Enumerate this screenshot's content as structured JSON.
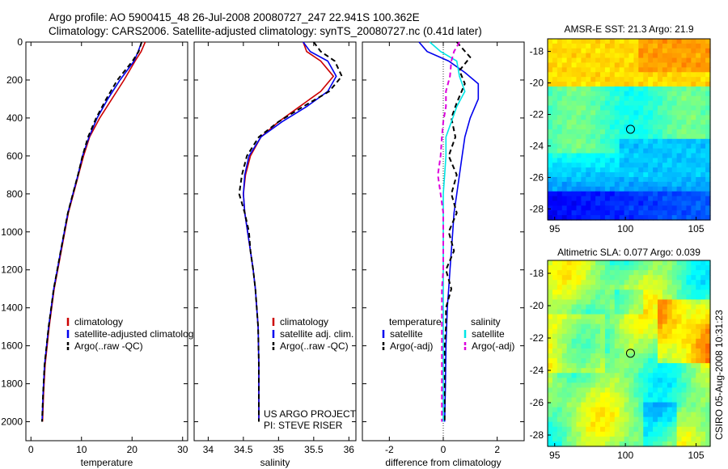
{
  "header": {
    "line1": "Argo profile: AO 5900415_48 26-Jul-2008 20080727_247 22.941S 100.362E",
    "line2": "Climatology: CARS2006. Satellite-adjusted climatology: synTS_20080727.nc (0.41d later)"
  },
  "side_label": "CSIRO 05-Aug-2008 10:31:23",
  "colors": {
    "climatology": "#cc0000",
    "satellite": "#0000ee",
    "argo": "#000000",
    "sal_satellite": "#00e5e5",
    "sal_argo": "#dd00dd"
  },
  "chart_data": [
    {
      "type": "line",
      "id": "temperature",
      "xlabel": "temperature",
      "ylabel": "",
      "xlim": [
        -1,
        31
      ],
      "ylim": [
        2100,
        0
      ],
      "y_reversed": true,
      "xticks": [
        0,
        10,
        20,
        30
      ],
      "yticks": [
        0,
        200,
        400,
        600,
        800,
        1000,
        1200,
        1400,
        1600,
        1800,
        2000
      ],
      "legend": {
        "placement": "lower-right",
        "entries": [
          "climatology",
          "satellite-adjusted climatology",
          "Argo(..raw -QC)"
        ]
      },
      "series": [
        {
          "name": "climatology",
          "color": "#cc0000",
          "style": "solid",
          "x": [
            22.6,
            21.8,
            20.6,
            18.4,
            16.0,
            13.6,
            11.6,
            10.4,
            9.4,
            8.4,
            7.4,
            6.7,
            6.0,
            5.3,
            4.6,
            4.1,
            3.6,
            3.2,
            2.8,
            2.5,
            2.3
          ],
          "y": [
            0,
            50,
            100,
            200,
            300,
            400,
            500,
            600,
            700,
            800,
            900,
            1000,
            1100,
            1200,
            1300,
            1400,
            1500,
            1600,
            1700,
            1850,
            2000
          ]
        },
        {
          "name": "satellite-adjusted climatology",
          "color": "#0000ee",
          "style": "solid",
          "x": [
            21.9,
            21.2,
            20.4,
            17.6,
            15.2,
            13.1,
            11.5,
            10.2,
            9.3,
            8.3,
            7.3,
            6.6,
            5.9,
            5.2,
            4.5,
            4.0,
            3.5,
            3.1,
            2.7,
            2.4,
            2.2
          ],
          "y": [
            0,
            50,
            100,
            200,
            300,
            400,
            500,
            600,
            700,
            800,
            900,
            1000,
            1100,
            1200,
            1300,
            1400,
            1500,
            1600,
            1700,
            1850,
            2000
          ]
        },
        {
          "name": "Argo(..raw -QC)",
          "color": "#000000",
          "style": "dashed",
          "x": [
            21.9,
            21.3,
            20.1,
            17.1,
            14.9,
            12.9,
            11.3,
            10.2,
            9.3,
            8.3,
            7.3,
            6.6,
            5.9,
            5.2,
            4.5,
            4.0,
            3.5,
            3.1,
            2.7,
            2.4,
            2.2
          ],
          "y": [
            0,
            50,
            100,
            200,
            300,
            400,
            500,
            600,
            700,
            800,
            900,
            1000,
            1100,
            1200,
            1300,
            1400,
            1500,
            1600,
            1700,
            1850,
            2000
          ]
        }
      ]
    },
    {
      "type": "line",
      "id": "salinity",
      "xlabel": "salinity",
      "ylabel": "",
      "xlim": [
        33.8,
        36.1
      ],
      "ylim": [
        2100,
        0
      ],
      "y_reversed": true,
      "xticks": [
        34,
        34.5,
        35,
        35.5,
        36
      ],
      "legend": {
        "placement": "lower-right",
        "entries": [
          "climatology",
          "satellite adj. clim.",
          "Argo(..raw -QC)"
        ]
      },
      "annotation": [
        "US ARGO PROJECT",
        "PI: STEVE RISER"
      ],
      "series": [
        {
          "name": "climatology",
          "color": "#cc0000",
          "style": "solid",
          "x": [
            35.35,
            35.4,
            35.6,
            35.78,
            35.6,
            35.3,
            35.0,
            34.75,
            34.6,
            34.53,
            34.5,
            34.52,
            34.56,
            34.6,
            34.64,
            34.67,
            34.69,
            34.71,
            34.72,
            34.72
          ],
          "y": [
            0,
            50,
            100,
            180,
            260,
            340,
            420,
            500,
            600,
            700,
            800,
            900,
            1000,
            1100,
            1200,
            1300,
            1400,
            1500,
            1700,
            2000
          ]
        },
        {
          "name": "satellite adj. clim.",
          "color": "#0000ee",
          "style": "solid",
          "x": [
            35.35,
            35.45,
            35.7,
            35.82,
            35.7,
            35.4,
            35.05,
            34.75,
            34.58,
            34.52,
            34.5,
            34.52,
            34.56,
            34.6,
            34.64,
            34.67,
            34.69,
            34.71,
            34.72,
            34.72
          ],
          "y": [
            0,
            50,
            100,
            180,
            260,
            340,
            420,
            500,
            600,
            700,
            800,
            900,
            1000,
            1100,
            1200,
            1300,
            1400,
            1500,
            1700,
            2000
          ]
        },
        {
          "name": "Argo(..raw -QC)",
          "color": "#000000",
          "style": "dashed",
          "x": [
            35.5,
            35.6,
            35.8,
            35.9,
            35.72,
            35.35,
            35.0,
            34.72,
            34.55,
            34.48,
            34.44,
            34.52,
            34.58,
            34.6,
            34.64,
            34.67,
            34.69,
            34.71,
            34.72,
            34.72
          ],
          "y": [
            0,
            50,
            100,
            180,
            260,
            340,
            420,
            500,
            600,
            700,
            800,
            900,
            1000,
            1100,
            1200,
            1300,
            1400,
            1500,
            1700,
            2000
          ]
        }
      ]
    },
    {
      "type": "line",
      "id": "difference",
      "xlabel": "difference from climatology",
      "ylabel": "",
      "xlim": [
        -3,
        3
      ],
      "ylim": [
        2100,
        0
      ],
      "y_reversed": true,
      "xticks": [
        -2,
        0,
        2
      ],
      "legend": {
        "placement": "lower-right",
        "groups": [
          {
            "title": "temperature",
            "entries": [
              "satellite",
              "Argo(-adj)"
            ]
          },
          {
            "title": "salinity",
            "entries": [
              "satellite",
              "Argo(-adj)"
            ]
          }
        ]
      },
      "series": [
        {
          "name": "temperature satellite",
          "color": "#0000ee",
          "style": "solid",
          "x": [
            -0.9,
            -0.6,
            0.2,
            0.8,
            1.3,
            1.3,
            1.0,
            0.8,
            0.7,
            0.6,
            0.5,
            0.4,
            0.35,
            0.3,
            0.25,
            0.2,
            0.15,
            0.1,
            0.08,
            0.05
          ],
          "y": [
            0,
            50,
            100,
            160,
            220,
            300,
            400,
            500,
            600,
            700,
            800,
            900,
            1000,
            1100,
            1200,
            1300,
            1400,
            1600,
            1800,
            2000
          ]
        },
        {
          "name": "temperature Argo(-adj)",
          "color": "#000000",
          "style": "dashed",
          "x": [
            0.5,
            1.0,
            0.6,
            0.8,
            0.5,
            0.3,
            0.45,
            0.2,
            0.5,
            0.3,
            0.5,
            0.2,
            0.4,
            0.1,
            0.3,
            0.1,
            0.1,
            0.05,
            0.05,
            0.05
          ],
          "y": [
            0,
            80,
            150,
            220,
            320,
            400,
            500,
            600,
            700,
            800,
            900,
            1000,
            1100,
            1200,
            1300,
            1400,
            1500,
            1600,
            1800,
            2000
          ]
        },
        {
          "name": "salinity satellite",
          "color": "#00e5e5",
          "style": "solid",
          "x": [
            -0.5,
            -0.1,
            0.5,
            0.6,
            0.8,
            0.5,
            0.3,
            0.1,
            0.1,
            0.05,
            0.0,
            0.0,
            0.0,
            0.0,
            0.0,
            0.0,
            0.0,
            0.0,
            0.0,
            0.0
          ],
          "y": [
            0,
            50,
            100,
            180,
            260,
            340,
            420,
            500,
            600,
            700,
            800,
            900,
            1000,
            1100,
            1200,
            1300,
            1400,
            1500,
            1700,
            2000
          ]
        },
        {
          "name": "salinity Argo(-adj)",
          "color": "#dd00dd",
          "style": "dashed",
          "x": [
            0.6,
            0.4,
            0.3,
            0.25,
            0.1,
            0.1,
            0.0,
            -0.05,
            -0.1,
            -0.2,
            -0.1,
            0.0,
            0.0,
            0.0,
            0.0,
            -0.05,
            -0.05,
            -0.05,
            -0.05,
            -0.05
          ],
          "y": [
            0,
            50,
            100,
            180,
            260,
            340,
            420,
            500,
            600,
            700,
            800,
            900,
            1000,
            1100,
            1200,
            1300,
            1400,
            1500,
            1700,
            2000
          ]
        }
      ]
    },
    {
      "type": "heatmap",
      "id": "sst_map",
      "title": "AMSR-E SST: 21.3 Argo: 21.9",
      "xlim": [
        94.5,
        106
      ],
      "ylim": [
        -28.7,
        -17.2
      ],
      "xticks": [
        95,
        100,
        105
      ],
      "yticks": [
        -18,
        -20,
        -22,
        -24,
        -26,
        -28
      ],
      "marker": {
        "lon": 100.362,
        "lat": -22.941
      }
    },
    {
      "type": "heatmap",
      "id": "sla_map",
      "title": "Altimetric SLA: 0.077 Argo: 0.039",
      "xlim": [
        94.5,
        106
      ],
      "ylim": [
        -28.7,
        -17.2
      ],
      "xticks": [
        95,
        100,
        105
      ],
      "yticks": [
        -18,
        -20,
        -22,
        -24,
        -26,
        -28
      ],
      "marker": {
        "lon": 100.362,
        "lat": -22.941
      }
    }
  ]
}
